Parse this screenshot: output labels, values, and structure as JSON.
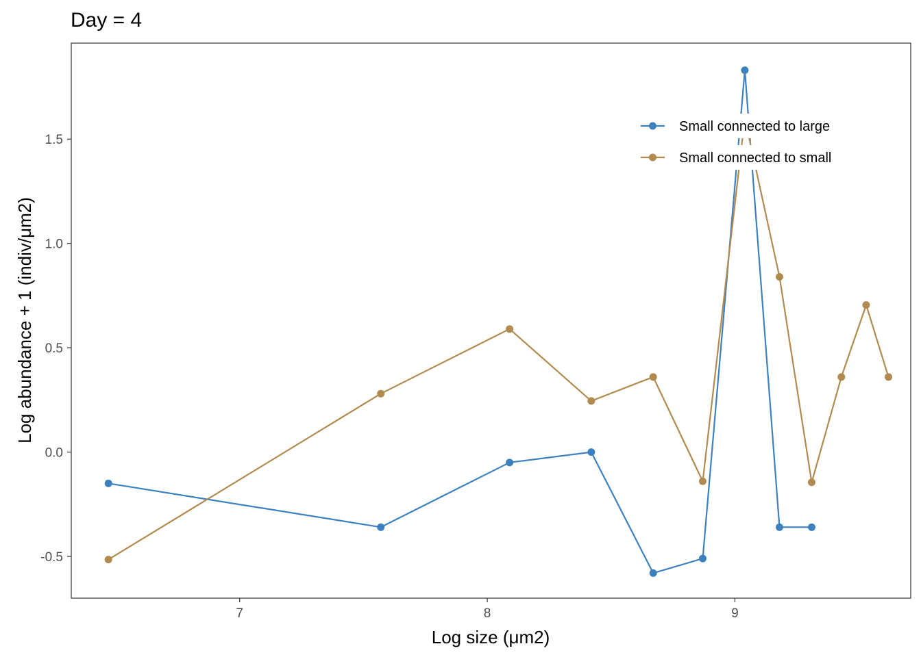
{
  "chart_data": {
    "type": "line",
    "title": "Day = 4",
    "xlabel": "Log size (μm2)",
    "ylabel": "Log abundance + 1 (indiv/μm2)",
    "xlim": [
      6.32,
      9.71
    ],
    "ylim": [
      -0.7,
      1.96
    ],
    "xticks": [
      {
        "value": 7,
        "label": "7"
      },
      {
        "value": 8,
        "label": "8"
      },
      {
        "value": 9,
        "label": "9"
      }
    ],
    "yticks": [
      {
        "value": -0.5,
        "label": "-0.5"
      },
      {
        "value": 0.0,
        "label": "0.0"
      },
      {
        "value": 0.5,
        "label": "0.5"
      },
      {
        "value": 1.0,
        "label": "1.0"
      },
      {
        "value": 1.5,
        "label": "1.5"
      }
    ],
    "grid": false,
    "legend_position": "top-right",
    "series": [
      {
        "name": "Small connected to large",
        "color": "#3D80BF",
        "x": [
          6.47,
          7.57,
          8.09,
          8.42,
          8.67,
          8.87,
          9.04,
          9.18,
          9.31
        ],
        "y": [
          -0.15,
          -0.36,
          -0.05,
          0.0,
          -0.58,
          -0.51,
          1.83,
          -0.36,
          -0.36
        ]
      },
      {
        "name": "Small connected to small",
        "color": "#B08A4E",
        "x": [
          6.47,
          7.57,
          8.09,
          8.42,
          8.67,
          8.87,
          9.04,
          9.18,
          9.31,
          9.43,
          9.53,
          9.62
        ],
        "y": [
          -0.515,
          0.28,
          0.59,
          0.245,
          0.36,
          -0.14,
          1.6,
          0.84,
          -0.145,
          0.36,
          0.705,
          0.36
        ]
      }
    ]
  }
}
